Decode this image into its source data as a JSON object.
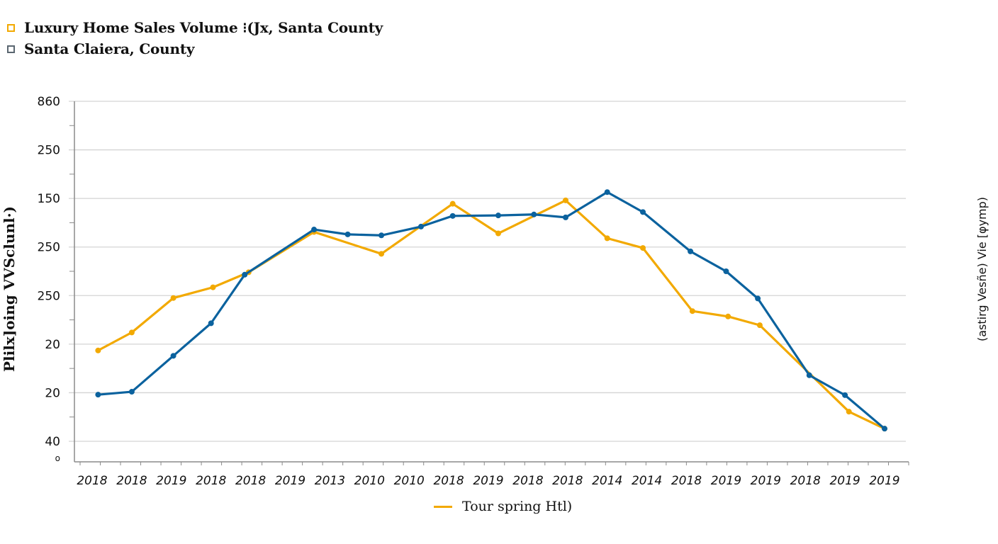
{
  "legend": {
    "items": [
      {
        "label": "Luxury Home Sales Volume ⁝(Jx, Santa County",
        "color": "#f2a900"
      },
      {
        "label": "Santa Claiera, County",
        "color": "#5a6670"
      }
    ]
  },
  "bottom_legend": {
    "label": "Tour spring Htl)",
    "color": "#f2a900"
  },
  "colors": {
    "orange": "#f2a900",
    "blue": "#0b629e",
    "grid": "#d4d4d4",
    "axis": "#8a8a8a"
  },
  "chart_data": {
    "type": "line",
    "title": "Luxury Home Sales Volume ⁝(Jx, Santa County",
    "xlabel": "",
    "ylabel": "Plilx]oing VVSclunl·)",
    "ylabel_right": "(astirg Vesñe) Vie [φymp)",
    "yticks": [
      "860",
      "250",
      "150",
      "250",
      "250",
      "20",
      "20",
      "40",
      "o"
    ],
    "ylim": [
      0,
      700
    ],
    "grid": true,
    "legend_position": "top-left",
    "categories": [
      "2018",
      "2018",
      "2019",
      "2018",
      "2018",
      "2019",
      "2013",
      "2010",
      "2010",
      "2018",
      "2019",
      "2018",
      "2018",
      "2014",
      "2014",
      "2018",
      "2019",
      "2019",
      "2018",
      "2019",
      "2019"
    ],
    "series": [
      {
        "name": "Luxury Home Sales Volume (Santa County)",
        "color": "#f2a900",
        "x": [
          0.15,
          1.0,
          2.05,
          3.05,
          3.95,
          5.6,
          7.3,
          9.1,
          10.25,
          11.95,
          13.0,
          13.9,
          15.15,
          16.05,
          16.85,
          19.1,
          20.0
        ],
        "values": [
          187,
          224,
          295,
          317,
          348,
          431,
          386,
          489,
          428,
          496,
          418,
          398,
          268,
          257,
          239,
          61,
          26
        ]
      },
      {
        "name": "Santa Claiera County",
        "color": "#0b629e",
        "x": [
          0.15,
          1.0,
          2.05,
          3.0,
          3.85,
          5.6,
          6.45,
          7.3,
          8.3,
          9.1,
          10.25,
          11.15,
          11.95,
          13.0,
          13.9,
          15.1,
          16.0,
          16.8,
          18.1,
          19.0,
          20.0
        ],
        "values": [
          96,
          102,
          176,
          243,
          343,
          436,
          426,
          424,
          442,
          464,
          465,
          467,
          461,
          513,
          472,
          391,
          350,
          294,
          136,
          95,
          26
        ]
      }
    ]
  }
}
